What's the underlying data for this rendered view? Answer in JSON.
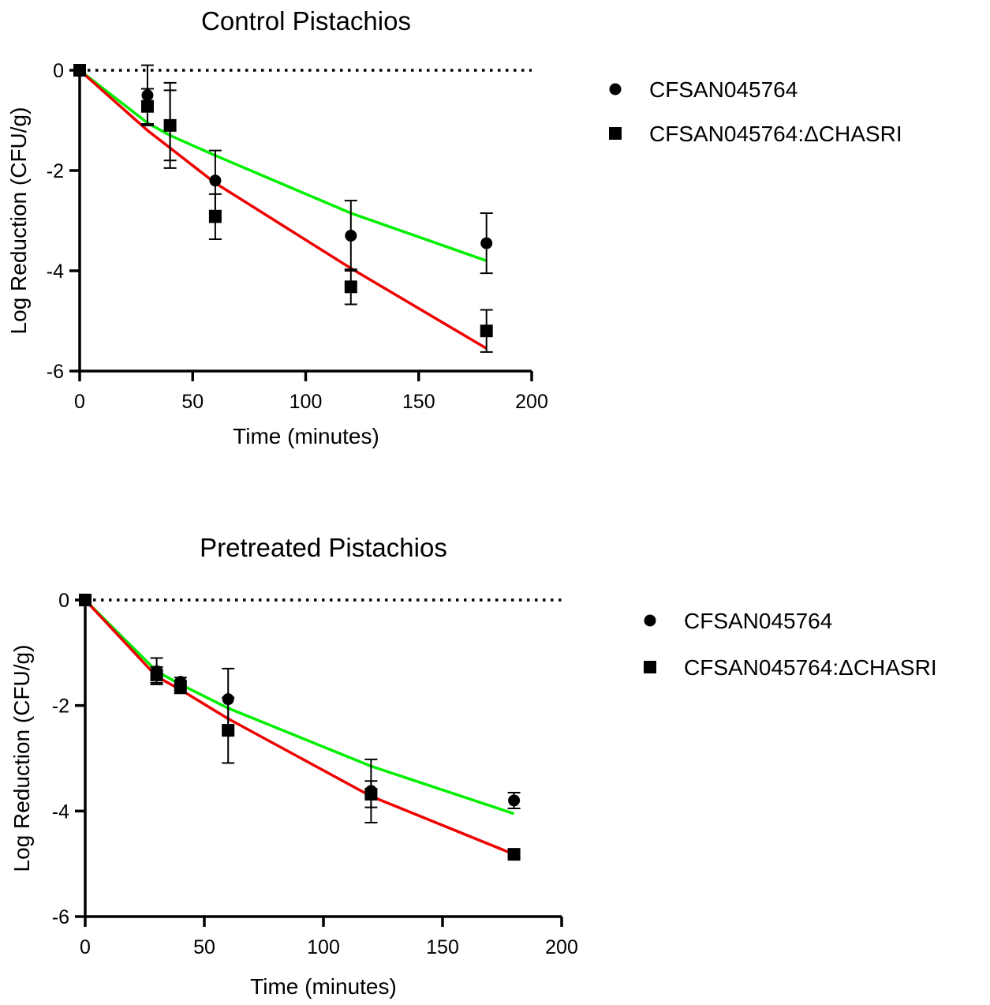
{
  "chart_data": [
    {
      "type": "scatter",
      "title": "Control Pistachios",
      "xlabel": "Time (minutes)",
      "ylabel": "Log Reduction (CFU/g)",
      "xlim": [
        0,
        200
      ],
      "ylim": [
        -6,
        0
      ],
      "xticks": [
        "0",
        "50",
        "100",
        "150",
        "200"
      ],
      "yticks": [
        "0",
        "-2",
        "-4",
        "-6"
      ],
      "reference_line": {
        "y": 0,
        "style": "dotted"
      },
      "legend_position": "right",
      "series": [
        {
          "name": "CFSAN045764",
          "marker": "circle",
          "color": "#000000",
          "points": [
            {
              "x": 0,
              "y": 0,
              "err": 0
            },
            {
              "x": 30,
              "y": -0.5,
              "err": 0.6
            },
            {
              "x": 40,
              "y": -1.1,
              "err": 0.7
            },
            {
              "x": 60,
              "y": -2.2,
              "err": 0.6
            },
            {
              "x": 120,
              "y": -3.3,
              "err": 0.7
            },
            {
              "x": 180,
              "y": -3.45,
              "err": 0.6
            }
          ],
          "fit": {
            "color": "#00ee00",
            "points": [
              [
                0,
                0
              ],
              [
                30,
                -1.05
              ],
              [
                40,
                -1.3
              ],
              [
                60,
                -1.7
              ],
              [
                120,
                -2.85
              ],
              [
                180,
                -3.8
              ]
            ]
          }
        },
        {
          "name": "CFSAN045764:ΔCHASRI",
          "marker": "square",
          "color": "#000000",
          "points": [
            {
              "x": 0,
              "y": 0,
              "err": 0
            },
            {
              "x": 30,
              "y": -0.72,
              "err": 0.35
            },
            {
              "x": 40,
              "y": -1.1,
              "err": 0.85
            },
            {
              "x": 60,
              "y": -2.92,
              "err": 0.45
            },
            {
              "x": 120,
              "y": -4.32,
              "err": 0.35
            },
            {
              "x": 180,
              "y": -5.2,
              "err": 0.42
            }
          ],
          "fit": {
            "color": "#ee0000",
            "points": [
              [
                0,
                0
              ],
              [
                30,
                -1.2
              ],
              [
                40,
                -1.55
              ],
              [
                60,
                -2.25
              ],
              [
                120,
                -3.95
              ],
              [
                180,
                -5.55
              ]
            ]
          }
        }
      ]
    },
    {
      "type": "scatter",
      "title": "Pretreated Pistachios",
      "xlabel": "Time (minutes)",
      "ylabel": "Log Reduction (CFU/g)",
      "xlim": [
        0,
        200
      ],
      "ylim": [
        -6,
        0
      ],
      "xticks": [
        "0",
        "50",
        "100",
        "150",
        "200"
      ],
      "yticks": [
        "0",
        "-2",
        "-4",
        "-6"
      ],
      "reference_line": {
        "y": 0,
        "style": "dotted"
      },
      "legend_position": "right",
      "series": [
        {
          "name": "CFSAN045764",
          "marker": "circle",
          "color": "#000000",
          "points": [
            {
              "x": 0,
              "y": 0,
              "err": 0
            },
            {
              "x": 30,
              "y": -1.35,
              "err": 0.25
            },
            {
              "x": 40,
              "y": -1.55,
              "err": 0.08
            },
            {
              "x": 60,
              "y": -1.88,
              "err": 0.58
            },
            {
              "x": 120,
              "y": -3.62,
              "err": 0.6
            },
            {
              "x": 180,
              "y": -3.8,
              "err": 0.15
            }
          ],
          "fit": {
            "color": "#00ee00",
            "points": [
              [
                0,
                0
              ],
              [
                30,
                -1.35
              ],
              [
                40,
                -1.6
              ],
              [
                60,
                -2.05
              ],
              [
                120,
                -3.15
              ],
              [
                180,
                -4.05
              ]
            ]
          }
        },
        {
          "name": "CFSAN045764:ΔCHASRI",
          "marker": "square",
          "color": "#000000",
          "points": [
            {
              "x": 0,
              "y": 0,
              "err": 0
            },
            {
              "x": 30,
              "y": -1.42,
              "err": 0.15
            },
            {
              "x": 40,
              "y": -1.65,
              "err": 0.12
            },
            {
              "x": 60,
              "y": -2.47,
              "err": 0.62
            },
            {
              "x": 120,
              "y": -3.68,
              "err": 0.25
            },
            {
              "x": 180,
              "y": -4.82,
              "err": 0.05
            }
          ],
          "fit": {
            "color": "#ee0000",
            "points": [
              [
                0,
                0
              ],
              [
                30,
                -1.45
              ],
              [
                40,
                -1.7
              ],
              [
                60,
                -2.25
              ],
              [
                120,
                -3.72
              ],
              [
                180,
                -4.82
              ]
            ]
          }
        }
      ]
    }
  ]
}
